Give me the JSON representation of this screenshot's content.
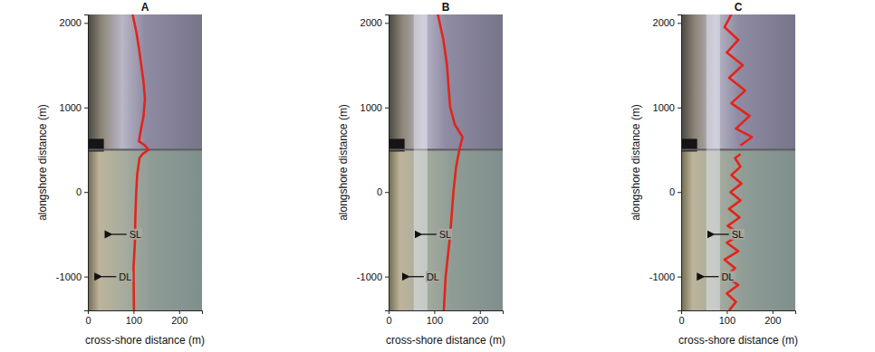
{
  "chart_data": [
    {
      "type": "line",
      "title": "A",
      "xlabel": "cross-shore distance (m)",
      "ylabel": "alongshore distance (m)",
      "xlim": [
        0,
        250
      ],
      "ylim": [
        -1400,
        2100
      ],
      "xticks": [
        0,
        100,
        200
      ],
      "yticks": [
        -1000,
        0,
        1000,
        2000
      ],
      "series": [
        {
          "color": "#e3241b",
          "line_style": "solid",
          "x": [
            101,
            100,
            103,
            104,
            106,
            108,
            113,
            120,
            133,
            125,
            112,
            115,
            122,
            125,
            122,
            117,
            112,
            106,
            98
          ],
          "values": [
            -1400,
            -900,
            -600,
            -300,
            0,
            200,
            400,
            450,
            500,
            550,
            600,
            700,
            900,
            1100,
            1300,
            1500,
            1700,
            1900,
            2100
          ]
        }
      ],
      "annotations": [
        "SL",
        "DL"
      ]
    },
    {
      "type": "line",
      "title": "B",
      "xlabel": "cross-shore distance (m)",
      "ylabel": "alongshore distance (m)",
      "xlim": [
        0,
        250
      ],
      "ylim": [
        -1400,
        2100
      ],
      "xticks": [
        0,
        100,
        200
      ],
      "yticks": [
        -1000,
        0,
        1000,
        2000
      ],
      "series": [
        {
          "color": "#e3241b",
          "line_style": "solid",
          "x": [
            121,
            125,
            135,
            142,
            148,
            155,
            162,
            145,
            135,
            132,
            128,
            120,
            108
          ],
          "values": [
            -1400,
            -1000,
            -500,
            0,
            300,
            500,
            650,
            800,
            1000,
            1200,
            1500,
            1800,
            2100
          ]
        }
      ],
      "annotations": [
        "SL",
        "DL"
      ]
    },
    {
      "type": "line",
      "title": "C",
      "xlabel": "cross-shore distance (m)",
      "ylabel": "alongshore distance (m)",
      "xlim": [
        0,
        250
      ],
      "ylim": [
        -1400,
        2100
      ],
      "xticks": [
        0,
        100,
        200
      ],
      "yticks": [
        -1000,
        0,
        1000,
        2000
      ],
      "series": [
        {
          "color": "#e3241b",
          "line_style": "solid",
          "x": [
            105,
            120,
            100,
            125,
            98,
            118,
            95,
            125,
            100,
            130,
            102,
            128,
            105,
            130,
            108,
            132,
            110,
            130,
            118,
            130,
            null,
            130,
            155,
            120,
            150,
            110,
            140,
            105,
            135,
            100,
            125,
            95,
            110
          ],
          "values": [
            -1400,
            -1300,
            -1200,
            -1100,
            -1000,
            -900,
            -800,
            -700,
            -600,
            -500,
            -400,
            -300,
            -200,
            -100,
            0,
            100,
            200,
            300,
            400,
            450,
            null,
            550,
            650,
            750,
            900,
            1050,
            1200,
            1350,
            1500,
            1650,
            1800,
            1950,
            2100
          ]
        }
      ],
      "annotations": [
        "SL",
        "DL"
      ]
    }
  ]
}
